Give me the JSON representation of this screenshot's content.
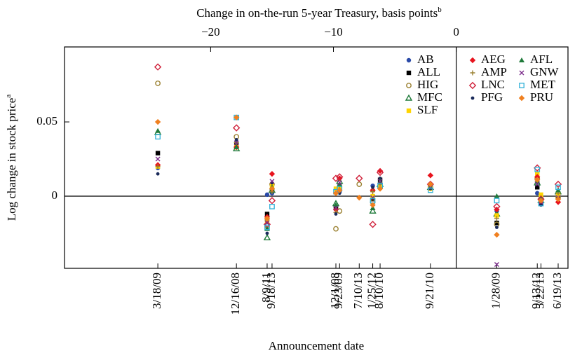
{
  "chart_data": {
    "type": "scatter",
    "x2_label": "Change in on-the-run 5-year Treasury, basis points",
    "x2_label_note": "b",
    "xlabel": "Announcement date",
    "ylabel": "Log change in stock price",
    "ylabel_note": "a",
    "x": [
      -24.3,
      -17.9,
      -15.4,
      -15.0,
      -9.8,
      -9.5,
      -7.9,
      -6.8,
      -6.2,
      -2.1,
      3.3,
      6.6,
      6.9,
      8.3
    ],
    "x_labels": [
      "3/18/09",
      "12/16/08",
      "8/9/11",
      "9/18/13",
      "12/1/08",
      "9/23/09",
      "7/10/13",
      "1/25/12",
      "8/10/10",
      "9/21/10",
      "1/28/09",
      "9/13/12",
      "5/22/13",
      "6/19/13"
    ],
    "xlim": [
      -31.9,
      9.1
    ],
    "xticks": [
      {
        "value": -20,
        "label": "−20"
      },
      {
        "value": -10,
        "label": "−10"
      },
      0
    ],
    "ylim": [
      -0.0486,
      0.1005
    ],
    "yticks": [
      0,
      0.05
    ],
    "hline": 0,
    "vline": 0,
    "series": [
      {
        "name": "AB",
        "color": "#2a4aa8",
        "marker": "circle",
        "values": [
          0.019,
          0.034,
          0.001,
          0.002,
          -0.007,
          0.003,
          null,
          0.007,
          0.009,
          0.006,
          -0.01,
          0.002,
          0,
          0.001
        ]
      },
      {
        "name": "ALL",
        "color": "#000000",
        "marker": "square",
        "values": [
          0.029,
          0.035,
          -0.012,
          0.004,
          -0.008,
          0.005,
          null,
          -0.002,
          0.011,
          0.007,
          -0.018,
          0.006,
          -0.005,
          0
        ]
      },
      {
        "name": "HIG",
        "color": "#9a8030",
        "marker": "circle-open",
        "values": [
          0.076,
          0.04,
          -0.02,
          0.008,
          -0.022,
          -0.01,
          0.008,
          -0.004,
          0.006,
          0.006,
          -0.019,
          0.012,
          -0.003,
          -0.001
        ]
      },
      {
        "name": "MFC",
        "color": "#1f7a3a",
        "marker": "triangle-open",
        "values": [
          0.043,
          0.032,
          -0.028,
          0.004,
          -0.005,
          0.01,
          null,
          -0.01,
          0.008,
          0.006,
          -0.012,
          0.009,
          -0.003,
          0.003
        ]
      },
      {
        "name": "SLF",
        "color": "#ffd400",
        "marker": "square",
        "values": [
          0.02,
          0.033,
          -0.017,
          0.007,
          0.005,
          0.006,
          null,
          0,
          0.007,
          0.005,
          -0.013,
          0.015,
          0.001,
          0.001
        ]
      },
      {
        "name": "AEG",
        "color": "#e8141e",
        "marker": "diamond",
        "values": [
          0.021,
          0.033,
          -0.014,
          0.015,
          -0.009,
          0.012,
          null,
          0.004,
          0.017,
          0.014,
          -0.009,
          0.013,
          -0.004,
          -0.004
        ]
      },
      {
        "name": "AMP",
        "color": "#9a8030",
        "marker": "plus",
        "values": [
          0.02,
          0.036,
          -0.016,
          0.003,
          -0.011,
          0.007,
          null,
          0.003,
          0.008,
          0.007,
          -0.015,
          0.01,
          -0.001,
          0.002
        ]
      },
      {
        "name": "LNC",
        "color": "#d0203a",
        "marker": "diamond-open",
        "values": [
          0.087,
          0.046,
          -0.019,
          -0.003,
          0.012,
          0.013,
          0.012,
          -0.019,
          0.016,
          0.008,
          -0.007,
          0.019,
          -0.002,
          0.008
        ]
      },
      {
        "name": "PFG",
        "color": "#1a2a5a",
        "marker": "circle-small",
        "values": [
          0.015,
          0.038,
          -0.025,
          0.009,
          -0.012,
          0.002,
          null,
          0.006,
          0.012,
          0.005,
          -0.021,
          0.009,
          -0.006,
          -0.002
        ]
      },
      {
        "name": "AFL",
        "color": "#1f7a3a",
        "marker": "triangle",
        "values": [
          0.044,
          0.033,
          -0.022,
          0.006,
          -0.006,
          0.008,
          null,
          -0.008,
          0.01,
          0.006,
          0,
          0.01,
          -0.002,
          0.004
        ]
      },
      {
        "name": "GNW",
        "color": "#7a2a8a",
        "marker": "x",
        "values": [
          0.025,
          0.036,
          -0.018,
          0.01,
          -0.008,
          0.009,
          null,
          -0.001,
          0.01,
          0.006,
          -0.046,
          0.008,
          -0.004,
          -0.001
        ]
      },
      {
        "name": "MET",
        "color": "#30b0d8",
        "marker": "square-open",
        "values": [
          0.04,
          0.053,
          -0.021,
          -0.007,
          0.003,
          0.005,
          null,
          -0.003,
          0.007,
          0.004,
          -0.003,
          0.018,
          -0.005,
          0.006
        ]
      },
      {
        "name": "PRU",
        "color": "#f08020",
        "marker": "diamond",
        "values": [
          0.05,
          0.053,
          -0.015,
          0.005,
          0.002,
          0.004,
          -0.001,
          -0.006,
          0.005,
          0.008,
          -0.026,
          0.011,
          -0.003,
          -0.002
        ]
      }
    ]
  }
}
